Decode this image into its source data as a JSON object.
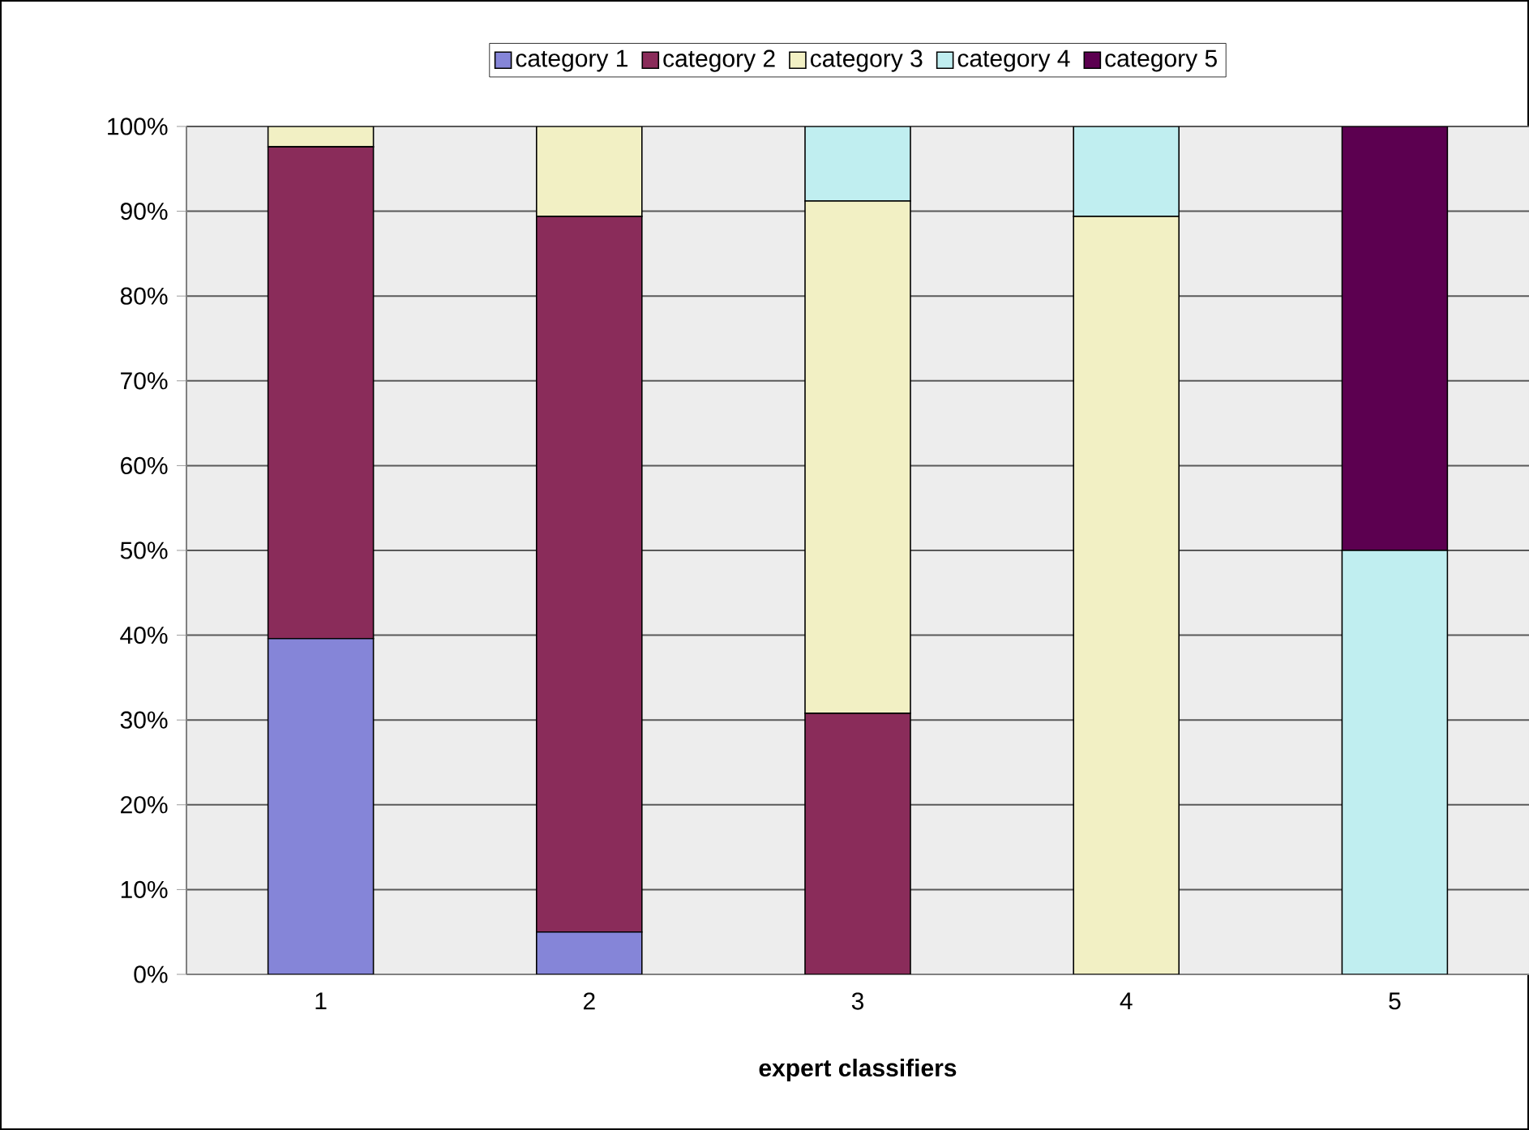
{
  "chart_data": {
    "type": "bar",
    "stacked": true,
    "xlabel": "expert classifiers",
    "categories": [
      "1",
      "2",
      "3",
      "4",
      "5"
    ],
    "series": [
      {
        "name": "category 1",
        "color": "#8585d8",
        "values": [
          39.6,
          5.0,
          0,
          0,
          0
        ]
      },
      {
        "name": "category 2",
        "color": "#8a2c5a",
        "values": [
          58.0,
          84.4,
          30.8,
          0,
          0
        ]
      },
      {
        "name": "category 3",
        "color": "#f2f0c4",
        "values": [
          2.4,
          10.6,
          60.4,
          89.4,
          0
        ]
      },
      {
        "name": "category 4",
        "color": "#c0eef0",
        "values": [
          0,
          0,
          8.8,
          10.6,
          50
        ]
      },
      {
        "name": "category 5",
        "color": "#5c0050",
        "values": [
          0,
          0,
          0,
          0,
          50
        ]
      }
    ],
    "ylim": [
      0,
      100
    ],
    "yticks": [
      {
        "value": 0,
        "label": "0%"
      },
      {
        "value": 10,
        "label": "10%"
      },
      {
        "value": 20,
        "label": "20%"
      },
      {
        "value": 30,
        "label": "30%"
      },
      {
        "value": 40,
        "label": "40%"
      },
      {
        "value": 50,
        "label": "50%"
      },
      {
        "value": 60,
        "label": "60%"
      },
      {
        "value": 70,
        "label": "70%"
      },
      {
        "value": 80,
        "label": "80%"
      },
      {
        "value": 90,
        "label": "90%"
      },
      {
        "value": 100,
        "label": "100%"
      }
    ],
    "grid": "y",
    "legend": "top"
  }
}
